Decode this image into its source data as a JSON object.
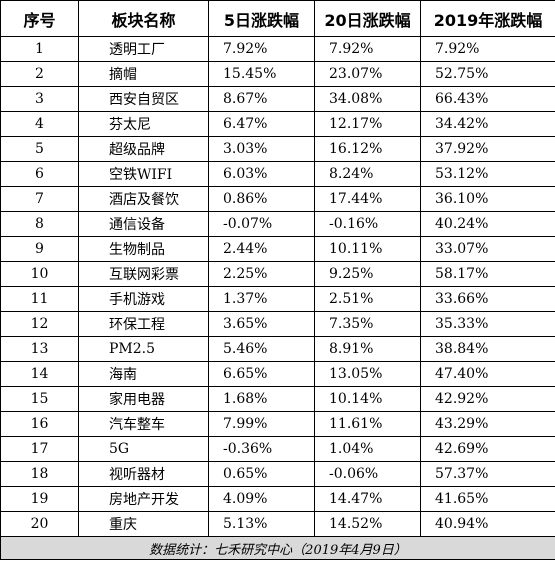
{
  "headers": {
    "index": "序号",
    "sector": "板块名称",
    "change_5d": "5日涨跌幅",
    "change_20d": "20日涨跌幅",
    "change_2019": "2019年涨跌幅"
  },
  "rows": [
    {
      "index": "1",
      "sector": "透明工厂",
      "change_5d": "7.92%",
      "change_20d": "7.92%",
      "change_2019": "7.92%"
    },
    {
      "index": "2",
      "sector": "摘帽",
      "change_5d": "15.45%",
      "change_20d": "23.07%",
      "change_2019": "52.75%"
    },
    {
      "index": "3",
      "sector": "西安自贸区",
      "change_5d": "8.67%",
      "change_20d": "34.08%",
      "change_2019": "66.43%"
    },
    {
      "index": "4",
      "sector": "芬太尼",
      "change_5d": "6.47%",
      "change_20d": "12.17%",
      "change_2019": "34.42%"
    },
    {
      "index": "5",
      "sector": "超级品牌",
      "change_5d": "3.03%",
      "change_20d": "16.12%",
      "change_2019": "37.92%"
    },
    {
      "index": "6",
      "sector": "空铁WIFI",
      "change_5d": "6.03%",
      "change_20d": "8.24%",
      "change_2019": "53.12%"
    },
    {
      "index": "7",
      "sector": "酒店及餐饮",
      "change_5d": "0.86%",
      "change_20d": "17.44%",
      "change_2019": "36.10%"
    },
    {
      "index": "8",
      "sector": "通信设备",
      "change_5d": "-0.07%",
      "change_20d": "-0.16%",
      "change_2019": "40.24%"
    },
    {
      "index": "9",
      "sector": "生物制品",
      "change_5d": "2.44%",
      "change_20d": "10.11%",
      "change_2019": "33.07%"
    },
    {
      "index": "10",
      "sector": "互联网彩票",
      "change_5d": "2.25%",
      "change_20d": "9.25%",
      "change_2019": "58.17%"
    },
    {
      "index": "11",
      "sector": "手机游戏",
      "change_5d": "1.37%",
      "change_20d": "2.51%",
      "change_2019": "33.66%"
    },
    {
      "index": "12",
      "sector": "环保工程",
      "change_5d": "3.65%",
      "change_20d": "7.35%",
      "change_2019": "35.33%"
    },
    {
      "index": "13",
      "sector": "PM2.5",
      "change_5d": "5.46%",
      "change_20d": "8.91%",
      "change_2019": "38.84%"
    },
    {
      "index": "14",
      "sector": "海南",
      "change_5d": "6.65%",
      "change_20d": "13.05%",
      "change_2019": "47.40%"
    },
    {
      "index": "15",
      "sector": "家用电器",
      "change_5d": "1.68%",
      "change_20d": "10.14%",
      "change_2019": "42.92%"
    },
    {
      "index": "16",
      "sector": "汽车整车",
      "change_5d": "7.99%",
      "change_20d": "11.61%",
      "change_2019": "43.29%"
    },
    {
      "index": "17",
      "sector": "5G",
      "change_5d": "-0.36%",
      "change_20d": "1.04%",
      "change_2019": "42.69%"
    },
    {
      "index": "18",
      "sector": "视听器材",
      "change_5d": "0.65%",
      "change_20d": "-0.06%",
      "change_2019": "57.37%"
    },
    {
      "index": "19",
      "sector": "房地产开发",
      "change_5d": "4.09%",
      "change_20d": "14.47%",
      "change_2019": "41.65%"
    },
    {
      "index": "20",
      "sector": "重庆",
      "change_5d": "5.13%",
      "change_20d": "14.52%",
      "change_2019": "40.94%"
    }
  ],
  "footer": "数据统计：七禾研究中心（2019年4月9日）",
  "colors": {
    "footer_bg": "#d9d9d9",
    "border": "#000000"
  }
}
